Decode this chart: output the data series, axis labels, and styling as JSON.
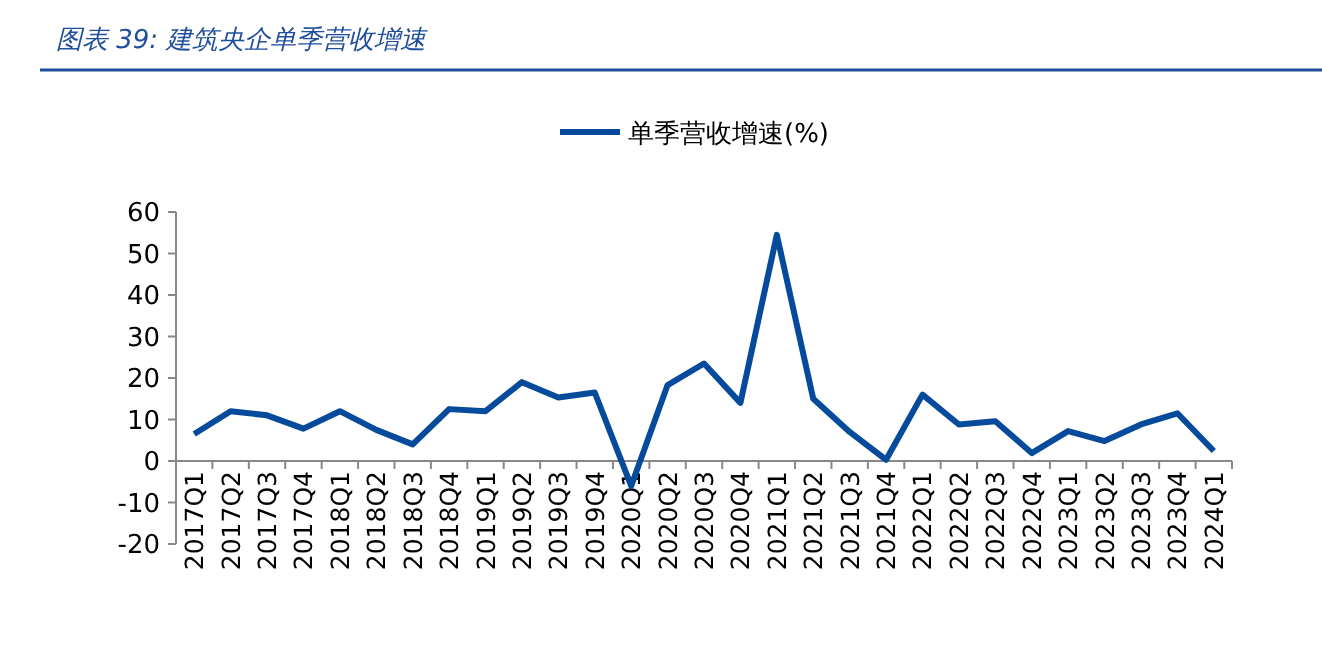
{
  "chart_data": {
    "type": "line",
    "title": "图表 39:  建筑央企单季营收增速",
    "categories": [
      "2017Q1",
      "2017Q2",
      "2017Q3",
      "2017Q4",
      "2018Q1",
      "2018Q2",
      "2018Q3",
      "2018Q4",
      "2019Q1",
      "2019Q2",
      "2019Q3",
      "2019Q4",
      "2020Q1",
      "2020Q2",
      "2020Q3",
      "2020Q4",
      "2021Q1",
      "2021Q2",
      "2021Q3",
      "2021Q4",
      "2022Q1",
      "2022Q2",
      "2022Q3",
      "2022Q4",
      "2023Q1",
      "2023Q2",
      "2023Q3",
      "2023Q4",
      "2024Q1"
    ],
    "series": [
      {
        "name": "单季营收增速(%)",
        "color": "#064a9c",
        "values": [
          6.5,
          12,
          11,
          7.8,
          12,
          7.5,
          4,
          12.5,
          12,
          19,
          15.3,
          16.5,
          -6,
          18.3,
          23.5,
          14,
          54.5,
          15,
          7,
          0.3,
          16,
          8.8,
          9.6,
          1.9,
          7.2,
          4.8,
          8.8,
          11.5,
          2.4
        ]
      }
    ],
    "ylim": [
      -20,
      60
    ],
    "yticks": [
      -20,
      -10,
      0,
      10,
      20,
      30,
      40,
      50,
      60
    ],
    "legend": "top",
    "grid": false,
    "marker": "none",
    "line_style": "solid"
  }
}
